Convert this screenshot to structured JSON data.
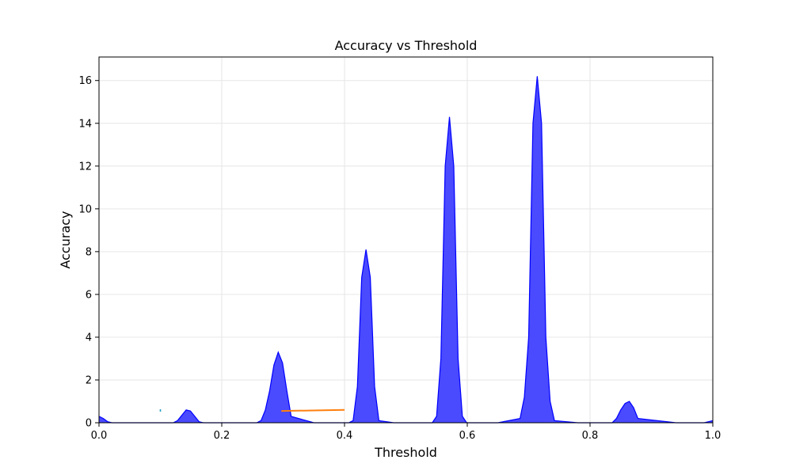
{
  "chart_data": {
    "type": "area",
    "title": "Accuracy vs Threshold",
    "xlabel": "Threshold",
    "ylabel": "Accuracy",
    "xlim": [
      0,
      1
    ],
    "ylim": [
      0,
      17.1
    ],
    "xticks": [
      "0.0",
      "0.2",
      "0.4",
      "0.6",
      "0.8",
      "1.0"
    ],
    "xtick_values": [
      0,
      0.2,
      0.4,
      0.6,
      0.8,
      1.0
    ],
    "yticks": [
      "0",
      "2",
      "4",
      "6",
      "8",
      "10",
      "12",
      "14",
      "16"
    ],
    "ytick_values": [
      0,
      2,
      4,
      6,
      8,
      10,
      12,
      14,
      16
    ],
    "grid": true,
    "colors": {
      "fill": "#4a4aff",
      "edge": "#0000ff",
      "segment": "#ff7f0e",
      "marker": "#1f9bc4",
      "grid": "#e6e6e6"
    },
    "series": [
      {
        "kind": "area",
        "x": [
          0.0,
          0.007,
          0.014,
          0.021,
          0.028,
          0.035,
          0.1,
          0.121,
          0.128,
          0.135,
          0.142,
          0.149,
          0.156,
          0.163,
          0.17,
          0.2,
          0.257,
          0.264,
          0.271,
          0.278,
          0.285,
          0.292,
          0.299,
          0.306,
          0.313,
          0.35,
          0.407,
          0.414,
          0.421,
          0.428,
          0.435,
          0.442,
          0.449,
          0.456,
          0.48,
          0.543,
          0.55,
          0.557,
          0.564,
          0.571,
          0.578,
          0.585,
          0.592,
          0.599,
          0.65,
          0.686,
          0.693,
          0.7,
          0.707,
          0.714,
          0.721,
          0.728,
          0.735,
          0.742,
          0.78,
          0.836,
          0.843,
          0.85,
          0.857,
          0.864,
          0.871,
          0.878,
          0.94,
          0.986,
          0.993,
          1.0
        ],
        "y": [
          0.3,
          0.2,
          0.05,
          0,
          0,
          0,
          0,
          0,
          0.1,
          0.35,
          0.6,
          0.55,
          0.3,
          0.05,
          0,
          0,
          0,
          0.1,
          0.6,
          1.5,
          2.7,
          3.3,
          2.8,
          1.5,
          0.3,
          0,
          0,
          0.1,
          1.7,
          6.8,
          8.1,
          6.8,
          1.7,
          0.1,
          0,
          0,
          0.3,
          3.0,
          12.0,
          14.3,
          12.0,
          3.0,
          0.3,
          0,
          0,
          0.2,
          1.2,
          4.0,
          14.0,
          16.2,
          14.0,
          4.0,
          1.0,
          0.1,
          0,
          0,
          0.2,
          0.6,
          0.9,
          1.0,
          0.7,
          0.2,
          0,
          0,
          0.05,
          0.1
        ]
      },
      {
        "kind": "line",
        "x": [
          0.297,
          0.4
        ],
        "y": [
          0.55,
          0.6
        ]
      },
      {
        "kind": "line",
        "x": [
          0.1,
          0.1
        ],
        "y": [
          0.52,
          0.63
        ]
      }
    ]
  }
}
